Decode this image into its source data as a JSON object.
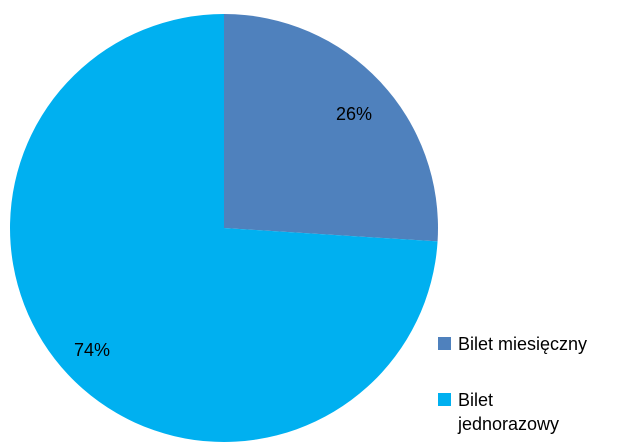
{
  "chart_data": {
    "type": "pie",
    "categories": [
      "Bilet miesięczny",
      "Bilet jednorazowy"
    ],
    "values": [
      26,
      74
    ],
    "data_labels": [
      "26%",
      "74%"
    ],
    "colors": [
      "#4f81bd",
      "#00b0f0"
    ],
    "legend": {
      "placement": "bottom-right",
      "entries": [
        {
          "lines": [
            "Bilet miesięczny"
          ]
        },
        {
          "lines": [
            "Bilet",
            "jednorazowy"
          ]
        }
      ]
    },
    "start": "top",
    "direction": "clockwise"
  }
}
